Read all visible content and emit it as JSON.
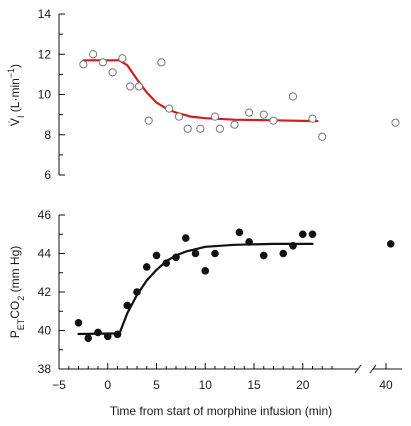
{
  "chart_data": [
    {
      "panel": "top",
      "type": "scatter",
      "ylabel": "V̇I (L·min⁻¹)",
      "ylim": [
        6,
        14
      ],
      "yticks": [
        "14",
        "12",
        "10",
        "8",
        "6"
      ],
      "xlim": [
        -5,
        40
      ],
      "axis_break_after": 25,
      "marker": "open-circle",
      "fit_color": "#cc1f1f",
      "points": [
        {
          "x": -2.5,
          "y": 11.5
        },
        {
          "x": -1.5,
          "y": 12.0
        },
        {
          "x": -0.5,
          "y": 11.6
        },
        {
          "x": 0.5,
          "y": 11.1
        },
        {
          "x": 1.5,
          "y": 11.8
        },
        {
          "x": 2.3,
          "y": 10.4
        },
        {
          "x": 3.2,
          "y": 10.4
        },
        {
          "x": 4.2,
          "y": 8.7
        },
        {
          "x": 5.5,
          "y": 11.6
        },
        {
          "x": 6.3,
          "y": 9.3
        },
        {
          "x": 7.3,
          "y": 8.9
        },
        {
          "x": 8.2,
          "y": 8.3
        },
        {
          "x": 9.5,
          "y": 8.3
        },
        {
          "x": 11.0,
          "y": 8.9
        },
        {
          "x": 11.5,
          "y": 8.3
        },
        {
          "x": 13.0,
          "y": 8.5
        },
        {
          "x": 14.5,
          "y": 9.1
        },
        {
          "x": 16.0,
          "y": 9.0
        },
        {
          "x": 17.0,
          "y": 8.7
        },
        {
          "x": 19.0,
          "y": 9.9
        },
        {
          "x": 21.0,
          "y": 8.8
        },
        {
          "x": 22.0,
          "y": 7.9
        },
        {
          "x": 41.0,
          "y": 8.6
        }
      ],
      "fit": [
        {
          "x": -2.5,
          "y": 11.7
        },
        {
          "x": 1.2,
          "y": 11.7
        },
        {
          "x": 2.0,
          "y": 11.45
        },
        {
          "x": 3.0,
          "y": 10.75
        },
        {
          "x": 4.0,
          "y": 10.1
        },
        {
          "x": 5.0,
          "y": 9.6
        },
        {
          "x": 6.0,
          "y": 9.3
        },
        {
          "x": 7.0,
          "y": 9.1
        },
        {
          "x": 8.5,
          "y": 8.9
        },
        {
          "x": 10.0,
          "y": 8.82
        },
        {
          "x": 13.0,
          "y": 8.75
        },
        {
          "x": 17.0,
          "y": 8.72
        },
        {
          "x": 21.5,
          "y": 8.68
        }
      ]
    },
    {
      "panel": "bottom",
      "type": "scatter",
      "ylabel": "PETCO2 (mm Hg)",
      "xlabel": "Time from start of morphine infusion (min)",
      "ylim": [
        38,
        46
      ],
      "yticks": [
        "46",
        "44",
        "42",
        "40",
        "38"
      ],
      "xlim": [
        -5,
        40
      ],
      "xticks": [
        "−5",
        "0",
        "5",
        "10",
        "15",
        "20",
        "40"
      ],
      "axis_break_after": 25,
      "marker": "filled-circle",
      "fit_color": "#111111",
      "points": [
        {
          "x": -3.0,
          "y": 40.4
        },
        {
          "x": -2.0,
          "y": 39.6
        },
        {
          "x": -1.0,
          "y": 39.9
        },
        {
          "x": 0.0,
          "y": 39.7
        },
        {
          "x": 1.0,
          "y": 39.8
        },
        {
          "x": 2.0,
          "y": 41.3
        },
        {
          "x": 3.0,
          "y": 42.0
        },
        {
          "x": 4.0,
          "y": 43.3
        },
        {
          "x": 5.0,
          "y": 43.9
        },
        {
          "x": 6.0,
          "y": 43.5
        },
        {
          "x": 7.0,
          "y": 43.8
        },
        {
          "x": 8.0,
          "y": 44.8
        },
        {
          "x": 9.0,
          "y": 44.0
        },
        {
          "x": 10.0,
          "y": 43.1
        },
        {
          "x": 11.0,
          "y": 44.0
        },
        {
          "x": 13.5,
          "y": 45.1
        },
        {
          "x": 14.5,
          "y": 44.6
        },
        {
          "x": 16.0,
          "y": 43.9
        },
        {
          "x": 18.0,
          "y": 44.0
        },
        {
          "x": 19.0,
          "y": 44.4
        },
        {
          "x": 20.0,
          "y": 45.0
        },
        {
          "x": 21.0,
          "y": 45.0
        },
        {
          "x": 40.5,
          "y": 44.5
        }
      ],
      "fit": [
        {
          "x": -3.0,
          "y": 39.82
        },
        {
          "x": 1.2,
          "y": 39.85
        },
        {
          "x": 2.0,
          "y": 40.9
        },
        {
          "x": 3.0,
          "y": 41.85
        },
        {
          "x": 4.0,
          "y": 42.6
        },
        {
          "x": 5.0,
          "y": 43.15
        },
        {
          "x": 6.0,
          "y": 43.6
        },
        {
          "x": 7.0,
          "y": 43.9
        },
        {
          "x": 8.0,
          "y": 44.1
        },
        {
          "x": 10.0,
          "y": 44.35
        },
        {
          "x": 13.0,
          "y": 44.45
        },
        {
          "x": 17.0,
          "y": 44.5
        },
        {
          "x": 21.0,
          "y": 44.5
        }
      ]
    }
  ]
}
